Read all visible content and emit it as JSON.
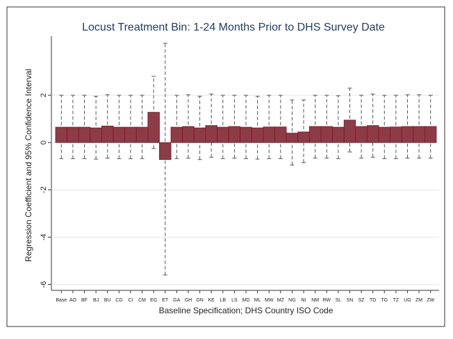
{
  "chart_data": {
    "type": "bar",
    "title": "Locust Treatment Bin: 1-24 Months Prior to DHS Survey Date",
    "x_label": "Baseline Specification; DHS Country ISO Code",
    "y_label": "Regression Coefficient and 95% Confidence Interval",
    "categories": [
      "Base",
      "AO",
      "BF",
      "BJ",
      "BU",
      "CD",
      "CI",
      "CM",
      "EG",
      "ET",
      "GA",
      "GH",
      "GN",
      "KE",
      "LB",
      "LS",
      "MD",
      "ML",
      "MW",
      "MZ",
      "NG",
      "NI",
      "NM",
      "RW",
      "SL",
      "SN",
      "SZ",
      "TD",
      "TG",
      "TZ",
      "UG",
      "ZM",
      "ZW"
    ],
    "values": [
      0.65,
      0.65,
      0.65,
      0.62,
      0.7,
      0.65,
      0.65,
      0.65,
      1.28,
      -0.72,
      0.65,
      0.68,
      0.62,
      0.72,
      0.65,
      0.68,
      0.65,
      0.62,
      0.66,
      0.66,
      0.4,
      0.45,
      0.68,
      0.68,
      0.65,
      0.95,
      0.68,
      0.72,
      0.65,
      0.66,
      0.68,
      0.68,
      0.68
    ],
    "lower": [
      -0.68,
      -0.68,
      -0.68,
      -0.7,
      -0.66,
      -0.68,
      -0.68,
      -0.68,
      -0.25,
      -5.6,
      -0.68,
      -0.66,
      -0.72,
      -0.62,
      -0.68,
      -0.66,
      -0.68,
      -0.7,
      -0.68,
      -0.68,
      -0.95,
      -0.85,
      -0.66,
      -0.66,
      -0.68,
      -0.4,
      -0.66,
      -0.62,
      -0.68,
      -0.68,
      -0.66,
      -0.66,
      -0.66
    ],
    "upper": [
      2.0,
      2.0,
      2.0,
      1.96,
      2.02,
      2.0,
      2.0,
      2.0,
      2.8,
      4.2,
      2.0,
      2.02,
      1.96,
      2.05,
      2.0,
      2.0,
      2.0,
      1.96,
      2.0,
      2.0,
      1.8,
      1.8,
      2.0,
      2.0,
      1.98,
      2.3,
      2.0,
      2.05,
      2.0,
      2.0,
      2.02,
      2.02,
      2.0
    ],
    "color": "#903a45",
    "edge_color": "#6b1f2a",
    "error_color": "#555555",
    "ylim": [
      -6.25,
      4.5
    ],
    "yticks": [
      -6,
      -4,
      -2,
      0,
      2
    ],
    "grid": true
  }
}
